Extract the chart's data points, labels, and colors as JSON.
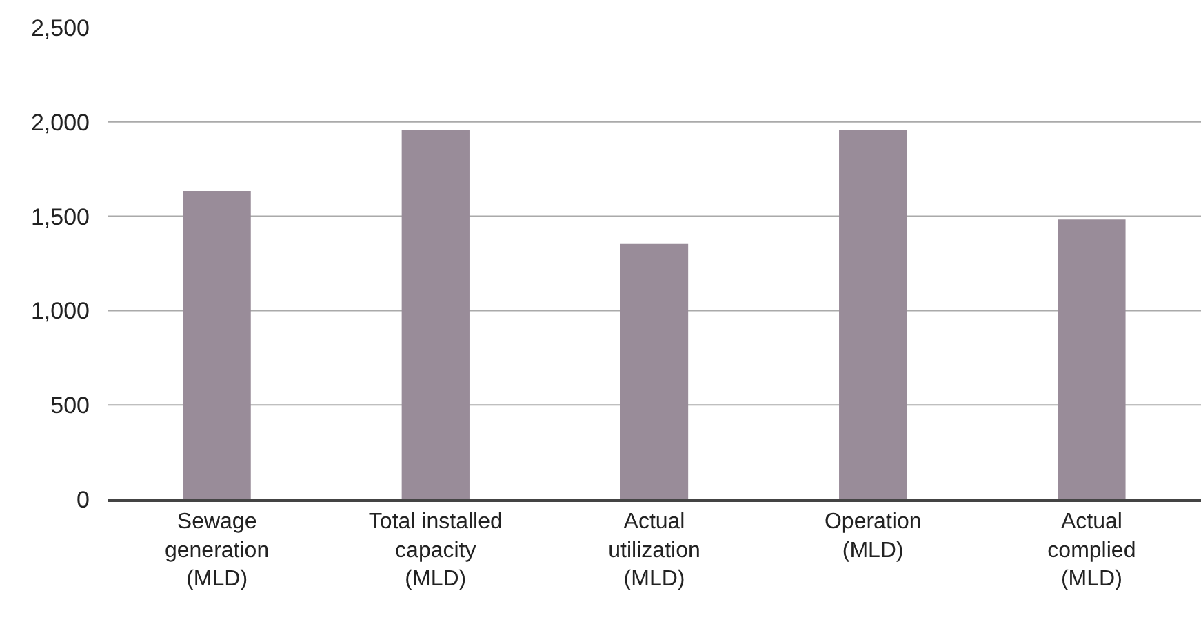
{
  "chart_data": {
    "type": "bar",
    "categories": [
      "Sewage\ngeneration\n(MLD)",
      "Total installed\ncapacity\n(MLD)",
      "Actual\nutilization\n(MLD)",
      "Operation\n(MLD)",
      "Actual\ncomplied\n(MLD)"
    ],
    "values": [
      1634,
      1955,
      1353,
      1955,
      1483
    ],
    "color": "#998c99",
    "ylim": [
      0,
      2500
    ],
    "yticks": [
      {
        "value": 0,
        "label": "0"
      },
      {
        "value": 500,
        "label": "500"
      },
      {
        "value": 1000,
        "label": "1,000"
      },
      {
        "value": 1500,
        "label": "1,500"
      },
      {
        "value": 2000,
        "label": "2,000"
      },
      {
        "value": 2500,
        "label": "2,500"
      }
    ],
    "grid": "y"
  }
}
